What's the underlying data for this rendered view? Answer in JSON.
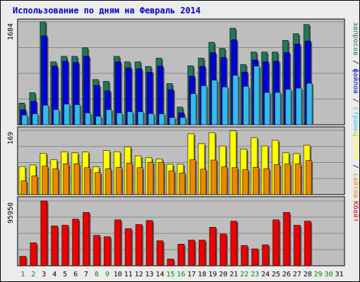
{
  "chart_data": {
    "type": "bar",
    "title": "Использование по дням на Февраль 2014",
    "colors": {
      "requests": "#22775a",
      "files": "#0000dd",
      "pages": "#33bbee",
      "visits": "#ffff00",
      "sites": "#ee8800",
      "kbytes": "#ee0000",
      "weekday_label": "#000000",
      "weekend_label": "#008800",
      "plot_bg": "#bebebe"
    },
    "categories": [
      {
        "label": "1",
        "weekend": true
      },
      {
        "label": "2",
        "weekend": true
      },
      {
        "label": "3",
        "weekend": false
      },
      {
        "label": "4",
        "weekend": false
      },
      {
        "label": "5",
        "weekend": false
      },
      {
        "label": "6",
        "weekend": false
      },
      {
        "label": "7",
        "weekend": false
      },
      {
        "label": "8",
        "weekend": true
      },
      {
        "label": "9",
        "weekend": true
      },
      {
        "label": "10",
        "weekend": false
      },
      {
        "label": "11",
        "weekend": false
      },
      {
        "label": "12",
        "weekend": false
      },
      {
        "label": "13",
        "weekend": false
      },
      {
        "label": "14",
        "weekend": false
      },
      {
        "label": "15",
        "weekend": true
      },
      {
        "label": "16",
        "weekend": true
      },
      {
        "label": "17",
        "weekend": false
      },
      {
        "label": "18",
        "weekend": false
      },
      {
        "label": "19",
        "weekend": false
      },
      {
        "label": "20",
        "weekend": false
      },
      {
        "label": "21",
        "weekend": false
      },
      {
        "label": "22",
        "weekend": true
      },
      {
        "label": "23",
        "weekend": true
      },
      {
        "label": "24",
        "weekend": false
      },
      {
        "label": "25",
        "weekend": false
      },
      {
        "label": "26",
        "weekend": false
      },
      {
        "label": "27",
        "weekend": false
      },
      {
        "label": "28",
        "weekend": false
      },
      {
        "label": "29",
        "weekend": true
      },
      {
        "label": "30",
        "weekend": true
      },
      {
        "label": "31",
        "weekend": false
      }
    ],
    "panels": [
      {
        "ymax_label": "1684",
        "ymax": 1684,
        "legend": [
          {
            "text": "запросов",
            "color": "#22775a"
          },
          {
            "text": " / ",
            "color": "#000000"
          },
          {
            "text": "файлов",
            "color": "#0000dd"
          },
          {
            "text": " / ",
            "color": "#000000"
          },
          {
            "text": "страниц",
            "color": "#33bbee"
          }
        ],
        "series": [
          {
            "key": "requests",
            "values": [
              355,
              525,
              1684,
              1030,
              1120,
              1120,
              1260,
              740,
              710,
              1120,
              1030,
              1030,
              955,
              1090,
              675,
              290,
              965,
              1090,
              1350,
              1250,
              1580,
              985,
              1190,
              1190,
              1190,
              1380,
              1490,
              1640,
              0,
              0,
              0
            ]
          },
          {
            "key": "files",
            "values": [
              245,
              385,
              1455,
              960,
              1040,
              1020,
              1120,
              645,
              555,
              1030,
              930,
              915,
              860,
              960,
              575,
              195,
              795,
              955,
              1180,
              1100,
              1390,
              860,
              1060,
              1030,
              1040,
              1180,
              1320,
              1370,
              0,
              0,
              0
            ]
          },
          {
            "key": "pages",
            "values": [
              160,
              180,
              320,
              250,
              340,
              330,
              195,
              140,
              250,
              195,
              215,
              215,
              185,
              180,
              120,
              120,
              510,
              640,
              730,
              620,
              810,
              630,
              960,
              530,
              530,
              580,
              600,
              680,
              0,
              0,
              0
            ]
          }
        ]
      },
      {
        "ymax_label": "169",
        "ymax": 169,
        "legend": [
          {
            "text": "визитов",
            "color": "#ffff00"
          },
          {
            "text": " / ",
            "color": "#000000"
          },
          {
            "text": "сайтов",
            "color": "#ee8800"
          }
        ],
        "series": [
          {
            "key": "visits",
            "values": [
              74,
              78,
              109,
              92,
              113,
              110,
              112,
              73,
              116,
              113,
              126,
              102,
              97,
              94,
              80,
              80,
              160,
              134,
              163,
              128,
              168,
              120,
              150,
              128,
              143,
              110,
              108,
              130,
              0,
              0,
              0
            ]
          },
          {
            "key": "sites",
            "values": [
              36,
              49,
              75,
              68,
              81,
              81,
              71,
              58,
              68,
              72,
              83,
              71,
              85,
              85,
              62,
              57,
              92,
              67,
              91,
              73,
              71,
              66,
              72,
              68,
              79,
              81,
              81,
              90,
              0,
              0,
              0
            ]
          }
        ]
      },
      {
        "ymax_label": "95950",
        "ymax": 95950,
        "legend": [
          {
            "text": "Кбайт",
            "color": "#ee0000"
          }
        ],
        "series": [
          {
            "key": "kbytes",
            "values": [
              14000,
              34000,
              95950,
              59000,
              60000,
              69000,
              79000,
              45000,
              43000,
              68000,
              55000,
              61000,
              67000,
              37000,
              10000,
              32000,
              38000,
              38000,
              57000,
              47000,
              66000,
              30000,
              25000,
              31000,
              68000,
              79000,
              60000,
              66000,
              0,
              0,
              0
            ]
          }
        ]
      }
    ]
  }
}
